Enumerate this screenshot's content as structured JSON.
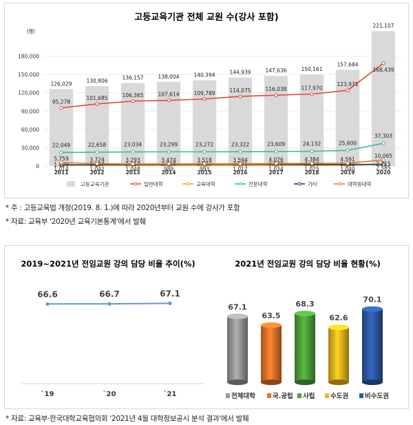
{
  "chart_data": [
    {
      "type": "bar",
      "title": "고등교육기관 전체 교원 수(강사 포함)",
      "ylabel": "(명)",
      "ylim": [
        0,
        210000
      ],
      "yticks": [
        0,
        30000,
        60000,
        90000,
        120000,
        150000,
        180000
      ],
      "ytick_labels": [
        "0",
        "30,000",
        "60,000",
        "90,000",
        "120,000",
        "150,000",
        "180,000"
      ],
      "categories": [
        "2011",
        "2012",
        "2013",
        "2014",
        "2015",
        "2016",
        "2017",
        "2018",
        "2019",
        "2020"
      ],
      "legend_position": "bottom",
      "series": [
        {
          "name": "고등교육기관",
          "kind": "bar",
          "color": "#d9d9d9",
          "values": [
            126029,
            130806,
            136157,
            138004,
            140394,
            144939,
            147636,
            150161,
            157684,
            221107
          ],
          "labels": [
            "126,029",
            "130,806",
            "136,157",
            "138,004",
            "140,394",
            "144,939",
            "147,636",
            "150,161",
            "157,684",
            "221,107"
          ]
        },
        {
          "name": "일반대학",
          "kind": "line",
          "color": "#e8453c",
          "values": [
            95278,
            101685,
            106365,
            107614,
            109789,
            114075,
            116038,
            117970,
            123971,
            168439
          ],
          "labels": [
            "95,278",
            "101,685",
            "106,365",
            "107,614",
            "109,789",
            "114,075",
            "116,038",
            "117,970",
            "123,971",
            "168,439"
          ]
        },
        {
          "name": "교육대학",
          "kind": "line",
          "color": "#f0a020",
          "values": [
            1014,
            1042,
            1048,
            989,
            993,
            1017,
            1034,
            1025,
            1040,
            2585
          ],
          "labels": [
            "1,014",
            "1,042",
            "1,048",
            "989",
            "993",
            "1,017",
            "1,034",
            "1,025",
            "1,040",
            "2,585"
          ]
        },
        {
          "name": "전문대학",
          "kind": "line",
          "color": "#3fb8a0",
          "values": [
            22049,
            22658,
            23034,
            23299,
            23272,
            23322,
            23609,
            24132,
            25600,
            37303
          ],
          "labels": [
            "22,049",
            "22,658",
            "23,034",
            "23,299",
            "23,272",
            "23,322",
            "23,609",
            "24,132",
            "25,600",
            "37,303"
          ]
        },
        {
          "name": "기타",
          "kind": "line",
          "color": "#1f3c6e",
          "values": [
            1929,
            2197,
            2417,
            2628,
            2822,
            2931,
            2879,
            2650,
            2482,
            2715
          ],
          "labels": [
            "1,929",
            "2,197",
            "2,417",
            "2,628",
            "2,822",
            "2,931",
            "2,879",
            "2,650",
            "2,482",
            "2,715"
          ]
        },
        {
          "name": "대학원대학",
          "kind": "line",
          "color": "#e07a2a",
          "values": [
            5759,
            3724,
            3293,
            3474,
            3518,
            3594,
            4076,
            4384,
            4591,
            10065
          ],
          "labels": [
            "5,759",
            "3,724",
            "3,293",
            "3,474",
            "3,518",
            "3,594",
            "4,076",
            "4,384",
            "4,591",
            "10,065"
          ]
        }
      ]
    },
    {
      "type": "line",
      "title": "2019~2021년 전임교원 강의 담당 비율 추이(%)",
      "categories": [
        "`19",
        "`20",
        "`21"
      ],
      "ylim": [
        0,
        80
      ],
      "series": [
        {
          "color": "#5b9bd5",
          "values": [
            66.6,
            66.7,
            67.1
          ],
          "labels": [
            "66.6",
            "66.7",
            "67.1"
          ]
        }
      ]
    },
    {
      "type": "bar",
      "title": "2021년 전임교원 강의 담당 비율 현황(%)",
      "categories": [
        "전체대학",
        "국.공립",
        "사립",
        "수도권",
        "비수도권"
      ],
      "values": [
        67.1,
        63.5,
        68.3,
        62.6,
        70.1
      ],
      "labels": [
        "67.1",
        "63.5",
        "68.3",
        "62.6",
        "70.1"
      ],
      "colors": [
        "#9a9a9a",
        "#e8762a",
        "#4fa33c",
        "#f2b81c",
        "#2f5aa6"
      ],
      "legend_position": "bottom",
      "ylim": [
        40,
        72
      ]
    }
  ],
  "notes": {
    "note1": "* 주 : 고등교육법 개정(2019. 8. 1.)에 따라 2020년부터 교원 수에 강사가 포함",
    "note2": "* 자료: 교육부 '2020년 교육기본통계'에서 발췌",
    "note3": "* 자료: 교육부·한국대학교육협의회 '2021년 4월 대학정보공시 분석 결과'에서 발췌"
  }
}
